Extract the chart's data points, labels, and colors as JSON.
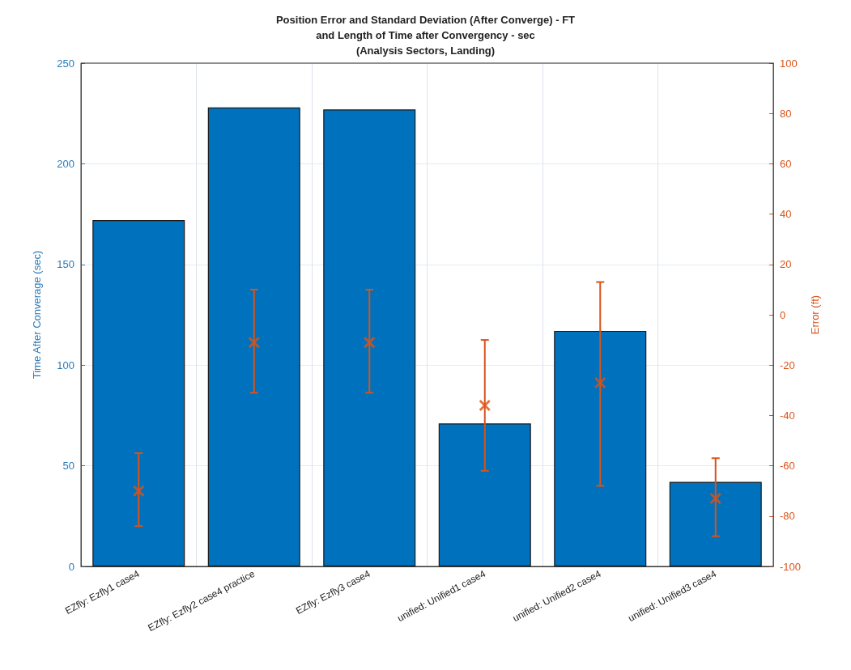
{
  "chart_data": {
    "type": "bar",
    "title": "Position Error and Standard Deviation (After Converge) - FT\nand Length of Time after Convergency - sec\n(Analysis Sectors, Landing)",
    "ylabel": "Time After Converage (sec)",
    "y2label": "Error (ft)",
    "categories": [
      "EZfly: Ezfly1 case4",
      "EZfly: Ezfly2 case4 practice",
      "EZfly: Ezfly3 case4",
      "unified: Unified1 case4",
      "unified: Unified2 case4",
      "unified: Unified3 case4"
    ],
    "series": [
      {
        "color": "#0072bd",
        "values": [
          172,
          228,
          227,
          71,
          117,
          42
        ]
      },
      {
        "type": "scatter",
        "axis": "y2",
        "color": "#d95319",
        "marker": "cross",
        "values": [
          -70,
          -11,
          -11,
          -36,
          -27,
          -73
        ],
        "errors": [
          [
            -84,
            -55
          ],
          [
            -31,
            10
          ],
          [
            -31,
            10
          ],
          [
            -62,
            -10
          ],
          [
            -68,
            13
          ],
          [
            -88,
            -57
          ]
        ]
      }
    ],
    "ylim": [
      0,
      250
    ],
    "yticks": [
      0,
      50,
      100,
      150,
      200,
      250
    ],
    "y2lim": [
      -100,
      100
    ],
    "y2ticks": [
      -100,
      -80,
      -60,
      -40,
      -20,
      0,
      20,
      40,
      60,
      80,
      100
    ],
    "grid": true
  }
}
